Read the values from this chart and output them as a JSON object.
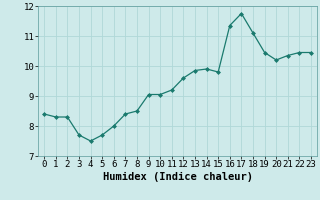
{
  "x": [
    0,
    1,
    2,
    3,
    4,
    5,
    6,
    7,
    8,
    9,
    10,
    11,
    12,
    13,
    14,
    15,
    16,
    17,
    18,
    19,
    20,
    21,
    22,
    23
  ],
  "y": [
    8.4,
    8.3,
    8.3,
    7.7,
    7.5,
    7.7,
    8.0,
    8.4,
    8.5,
    9.05,
    9.05,
    9.2,
    9.6,
    9.85,
    9.9,
    9.8,
    11.35,
    11.75,
    11.1,
    10.45,
    10.2,
    10.35,
    10.45,
    10.45
  ],
  "line_color": "#1a7a6e",
  "marker": "D",
  "marker_size": 2.0,
  "bg_color": "#ceeaea",
  "grid_color": "#b0d8d8",
  "xlabel": "Humidex (Indice chaleur)",
  "ylim": [
    7,
    12
  ],
  "xlim": [
    -0.5,
    23.5
  ],
  "yticks": [
    7,
    8,
    9,
    10,
    11,
    12
  ],
  "xticks": [
    0,
    1,
    2,
    3,
    4,
    5,
    6,
    7,
    8,
    9,
    10,
    11,
    12,
    13,
    14,
    15,
    16,
    17,
    18,
    19,
    20,
    21,
    22,
    23
  ],
  "axis_fontsize": 7,
  "tick_fontsize": 6.5,
  "xlabel_fontsize": 7.5
}
